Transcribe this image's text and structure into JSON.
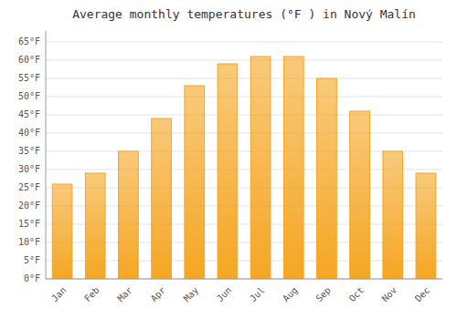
{
  "chart_data": {
    "type": "bar",
    "title": "Average monthly temperatures (°F ) in Nový Malín",
    "categories": [
      "Jan",
      "Feb",
      "Mar",
      "Apr",
      "May",
      "Jun",
      "Jul",
      "Aug",
      "Sep",
      "Oct",
      "Nov",
      "Dec"
    ],
    "values": [
      26,
      29,
      35,
      44,
      53,
      59,
      61,
      61,
      55,
      46,
      35,
      29
    ],
    "color": "#F5A623",
    "ylim": [
      0,
      68
    ],
    "yticks": [
      {
        "value": 0,
        "label": "0°F"
      },
      {
        "value": 5,
        "label": "5°F"
      },
      {
        "value": 10,
        "label": "10°F"
      },
      {
        "value": 15,
        "label": "15°F"
      },
      {
        "value": 20,
        "label": "20°F"
      },
      {
        "value": 25,
        "label": "25°F"
      },
      {
        "value": 30,
        "label": "30°F"
      },
      {
        "value": 35,
        "label": "35°F"
      },
      {
        "value": 40,
        "label": "40°F"
      },
      {
        "value": 45,
        "label": "45°F"
      },
      {
        "value": 50,
        "label": "50°F"
      },
      {
        "value": 55,
        "label": "55°F"
      },
      {
        "value": 60,
        "label": "60°F"
      },
      {
        "value": 65,
        "label": "65°F"
      }
    ],
    "grid": true
  }
}
